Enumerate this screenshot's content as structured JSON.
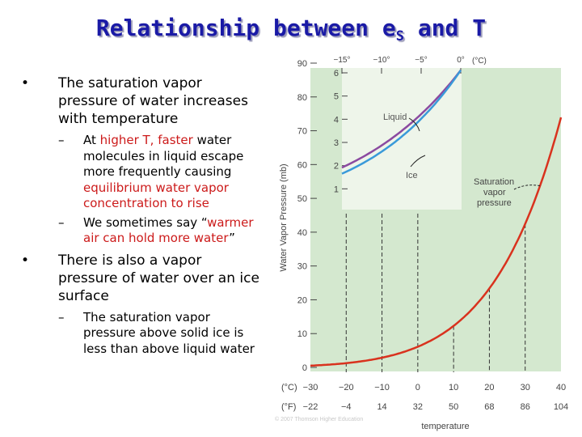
{
  "slide": {
    "title_main": "Relationship between e",
    "title_sub": "S",
    "title_tail": " and T"
  },
  "bullets": [
    {
      "bullet": "•",
      "text": "The saturation vapor pressure of water increases with temperature"
    },
    {
      "dash": "–",
      "parts": [
        "At ",
        "higher T, faster",
        " water molecules in liquid escape more frequently causing ",
        "equilibrium water vapor concentration to rise"
      ]
    },
    {
      "dash": "–",
      "parts": [
        "We sometimes say “",
        "warmer air can hold more water",
        "”"
      ]
    },
    {
      "bullet": "•",
      "text": "There is also a vapor pressure of water over an ice surface"
    },
    {
      "dash": "–",
      "text": "The saturation vapor pressure above solid ice is less than above liquid water"
    }
  ],
  "chart_data": {
    "type": "line",
    "ylabel": "Water Vapor Pressure (mb)",
    "xlabel": "temperature",
    "x_unit_c": "(°C)",
    "x_unit_f": "(°F)",
    "xticks_c": [
      "−30",
      "−20",
      "−10",
      "0",
      "10",
      "20",
      "30",
      "40"
    ],
    "xticks_f": [
      "−22",
      "−4",
      "14",
      "32",
      "50",
      "68",
      "86",
      "104"
    ],
    "xlim": [
      -30,
      40
    ],
    "ylim": [
      0,
      90
    ],
    "yticks": [
      "0",
      "10",
      "20",
      "30",
      "40",
      "50",
      "60",
      "70",
      "80",
      "90"
    ],
    "series": [
      {
        "name": "Saturation vapor pressure",
        "x": [
          -30,
          -25,
          -20,
          -15,
          -10,
          -5,
          0,
          5,
          10,
          15,
          20,
          25,
          30,
          35,
          40
        ],
        "y": [
          0.5,
          0.8,
          1.3,
          1.9,
          2.9,
          4.2,
          6.1,
          8.7,
          12.3,
          17.0,
          23.4,
          31.7,
          42.4,
          56.2,
          73.8
        ]
      }
    ],
    "dashed_guides_x": [
      -20,
      -10,
      0,
      10,
      20,
      30
    ],
    "inset": {
      "xticks": [
        "−15°",
        "−10°",
        "−5°",
        "0°"
      ],
      "x_unit": "(°C)",
      "xlim": [
        -15,
        0
      ],
      "ylim": [
        0,
        6
      ],
      "yticks": [
        "1",
        "2",
        "3",
        "4",
        "5",
        "6"
      ],
      "series": [
        {
          "name": "Liquid",
          "x": [
            -15,
            -12,
            -9,
            -6,
            -3,
            0
          ],
          "y": [
            1.9,
            2.4,
            3.1,
            3.9,
            4.9,
            6.1
          ]
        },
        {
          "name": "Ice",
          "x": [
            -15,
            -12,
            -9,
            -6,
            -3,
            0
          ],
          "y": [
            1.65,
            2.17,
            2.84,
            3.68,
            4.76,
            6.1
          ]
        }
      ]
    },
    "annotations": {
      "curve_label": "Saturation vapor pressure",
      "credit": "© 2007 Thomson Higher Education"
    },
    "colors": {
      "saturation": "#d9321e",
      "liquid": "#8b4aa0",
      "ice": "#3a9ad9",
      "panel": "#d4e8cf",
      "inset": "#eef5ea"
    }
  }
}
